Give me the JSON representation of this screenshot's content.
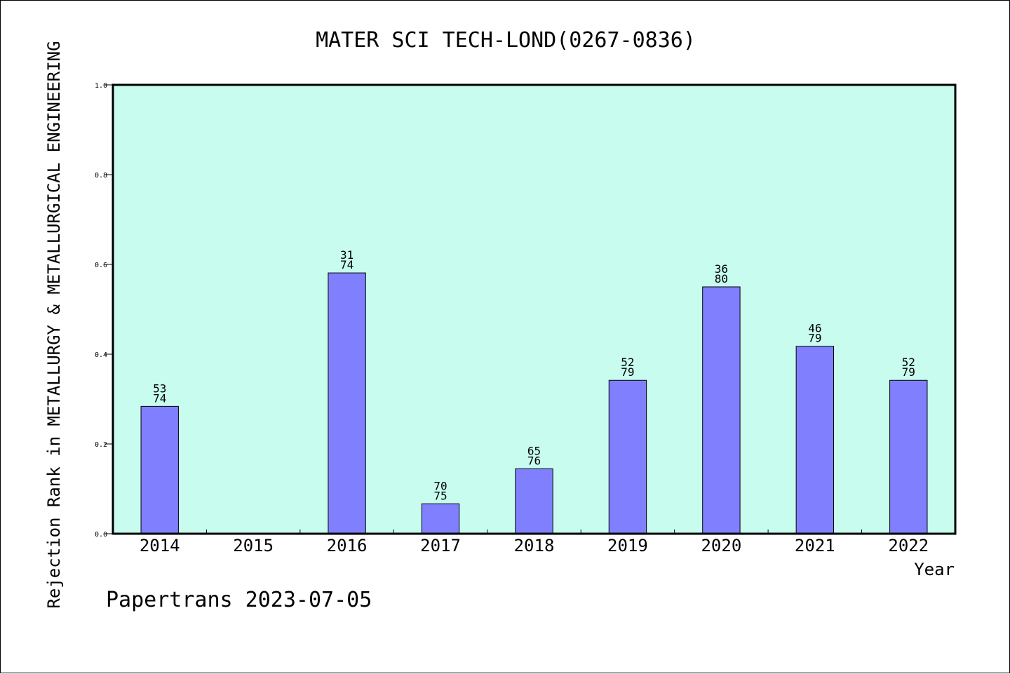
{
  "colors": {
    "plot_background": "#c8fcee",
    "bar_fill": "#8080ff",
    "bar_stroke": "#000000",
    "axis": "#000000"
  },
  "chart_data": {
    "type": "bar",
    "title": "MATER SCI TECH-LOND(0267-0836)",
    "xlabel": "Year",
    "ylabel": "Rejection Rank in METALLURGY & METALLURGICAL ENGINEERING",
    "categories": [
      "2014",
      "2015",
      "2016",
      "2017",
      "2018",
      "2019",
      "2020",
      "2021",
      "2022"
    ],
    "ylim": [
      0.0,
      1.0
    ],
    "yticks": [
      "0.0",
      "0.2",
      "0.4",
      "0.6",
      "0.8",
      "1.0"
    ],
    "grid": false,
    "legend": "none",
    "series": [
      {
        "values": [
          0.2838,
          null,
          0.5811,
          0.0667,
          0.1447,
          0.3418,
          0.55,
          0.4177,
          0.3418
        ],
        "labels": [
          [
            "53",
            "74"
          ],
          null,
          [
            "31",
            "74"
          ],
          [
            "70",
            "75"
          ],
          [
            "65",
            "76"
          ],
          [
            "52",
            "79"
          ],
          [
            "36",
            "80"
          ],
          [
            "46",
            "79"
          ],
          [
            "52",
            "79"
          ]
        ]
      }
    ]
  },
  "footer": {
    "text": "Papertrans 2023-07-05"
  }
}
